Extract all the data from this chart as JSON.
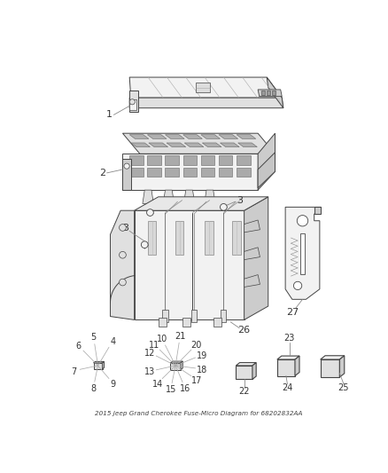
{
  "title": "2015 Jeep Grand Cherokee Fuse-Micro Diagram for 68202832AA",
  "bg": "#ffffff",
  "fw": 4.38,
  "fh": 5.33,
  "dpi": 100,
  "lc": "#888888",
  "lw": 0.7,
  "ec": "#444444",
  "fc_light": "#f2f2f2",
  "fc_mid": "#e0e0e0",
  "fc_dark": "#cccccc",
  "label_fs": 7.5
}
